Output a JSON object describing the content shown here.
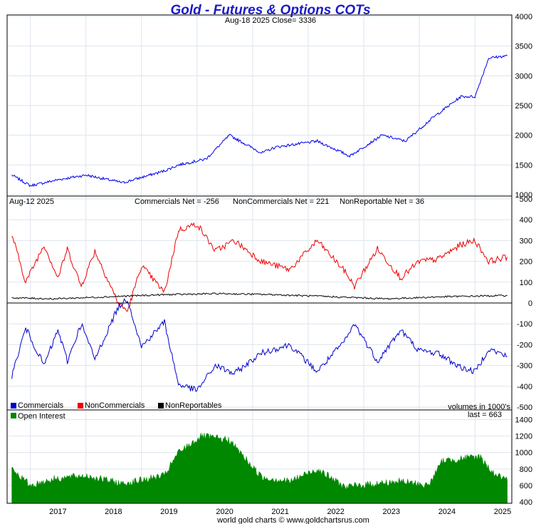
{
  "title": "Gold - Futures & Options COTs",
  "price_note": "Aug-18  2025   Close= 3336",
  "cot_date": "Aug-12  2025",
  "commercials_net": "Commercials Net = -256",
  "noncommercials_net": "NonCommercials Net = 221",
  "nonreportable_net": "NonReportable Net = 36",
  "volumes_note": "volumes in 1000's",
  "last_note": "last = 663",
  "footer": "world gold charts © www.goldchartsrus.com",
  "legend": {
    "commercials": "Commercials",
    "noncommercials": "NonCommercials",
    "nonreportables": "NonReportables",
    "open_interest": "Open Interest"
  },
  "colors": {
    "commercials": "#0000cc",
    "noncommercials": "#ee0000",
    "nonreportables": "#000000",
    "open_interest": "#008800",
    "price": "#0000ee",
    "title": "#1a1acc"
  },
  "chart_data": [
    {
      "type": "line",
      "panel": "price",
      "series": [
        {
          "x": [
            "2016-09",
            "2017-01",
            "2017-07",
            "2018-01",
            "2018-09",
            "2019-06",
            "2019-09",
            "2020-03",
            "2020-08",
            "2021-03",
            "2021-06",
            "2022-03",
            "2022-10",
            "2023-05",
            "2023-10",
            "2024-04",
            "2024-10",
            "2025-01",
            "2025-04",
            "2025-08"
          ],
          "values": [
            1330,
            1150,
            1250,
            1330,
            1200,
            1400,
            1500,
            1600,
            2000,
            1700,
            1800,
            1900,
            1650,
            2000,
            1900,
            2300,
            2650,
            2650,
            3300,
            3336
          ]
        }
      ],
      "x_ticks": [
        "2017",
        "2018",
        "2019",
        "2020",
        "2021",
        "2022",
        "2023",
        "2024",
        "2025"
      ],
      "y_ticks": [
        1000,
        1500,
        2000,
        2500,
        3000,
        3500,
        4000
      ],
      "ylim": [
        1000,
        4000
      ],
      "grid": true
    },
    {
      "type": "line",
      "panel": "cot_net",
      "series": [
        {
          "name": "NonCommercials",
          "x": [
            "2016-09",
            "2016-12",
            "2017-04",
            "2017-07",
            "2017-09",
            "2017-12",
            "2018-03",
            "2018-08",
            "2018-10",
            "2019-01",
            "2019-06",
            "2019-09",
            "2020-01",
            "2020-05",
            "2020-09",
            "2021-03",
            "2021-09",
            "2022-03",
            "2022-09",
            "2022-11",
            "2023-04",
            "2023-09",
            "2024-01",
            "2024-05",
            "2024-10",
            "2025-01",
            "2025-04",
            "2025-08"
          ],
          "values": [
            330,
            100,
            280,
            120,
            260,
            80,
            250,
            0,
            -40,
            180,
            50,
            350,
            380,
            250,
            300,
            200,
            160,
            300,
            150,
            80,
            260,
            120,
            200,
            210,
            280,
            300,
            200,
            221
          ]
        },
        {
          "name": "NonReportables",
          "x": [
            "2016-09",
            "2017-06",
            "2018-06",
            "2019-06",
            "2020-06",
            "2021-06",
            "2022-06",
            "2023-06",
            "2024-06",
            "2025-08"
          ],
          "values": [
            25,
            20,
            30,
            40,
            45,
            40,
            30,
            20,
            30,
            36
          ]
        },
        {
          "name": "Commercials",
          "x": [
            "2016-09",
            "2016-12",
            "2017-04",
            "2017-07",
            "2017-09",
            "2017-12",
            "2018-03",
            "2018-08",
            "2018-10",
            "2019-01",
            "2019-06",
            "2019-09",
            "2020-01",
            "2020-05",
            "2020-09",
            "2021-03",
            "2021-09",
            "2022-03",
            "2022-09",
            "2022-11",
            "2023-04",
            "2023-09",
            "2024-01",
            "2024-05",
            "2024-10",
            "2025-01",
            "2025-04",
            "2025-08"
          ],
          "values": [
            -350,
            -120,
            -300,
            -130,
            -280,
            -100,
            -270,
            -20,
            20,
            -210,
            -90,
            -390,
            -420,
            -300,
            -340,
            -240,
            -200,
            -330,
            -180,
            -100,
            -280,
            -130,
            -230,
            -240,
            -310,
            -330,
            -220,
            -256
          ]
        }
      ],
      "y_ticks": [
        -500,
        -400,
        -300,
        -200,
        -100,
        0,
        100,
        200,
        300,
        400,
        500
      ],
      "ylim": [
        -500,
        500
      ],
      "grid": true
    },
    {
      "type": "area",
      "panel": "open_interest",
      "series": [
        {
          "name": "Open Interest",
          "x": [
            "2016-09",
            "2017-01",
            "2017-06",
            "2018-01",
            "2018-09",
            "2019-06",
            "2019-09",
            "2020-02",
            "2020-08",
            "2021-03",
            "2021-09",
            "2022-03",
            "2022-09",
            "2023-03",
            "2023-09",
            "2024-03",
            "2024-06",
            "2025-02",
            "2025-05",
            "2025-08"
          ],
          "values": [
            800,
            600,
            680,
            720,
            620,
            720,
            1000,
            1200,
            1150,
            700,
            650,
            800,
            580,
            620,
            650,
            600,
            900,
            950,
            750,
            663
          ]
        }
      ],
      "y_ticks": [
        400,
        600,
        800,
        1000,
        1200,
        1400
      ],
      "ylim": [
        400,
        1500
      ],
      "grid": true
    }
  ]
}
